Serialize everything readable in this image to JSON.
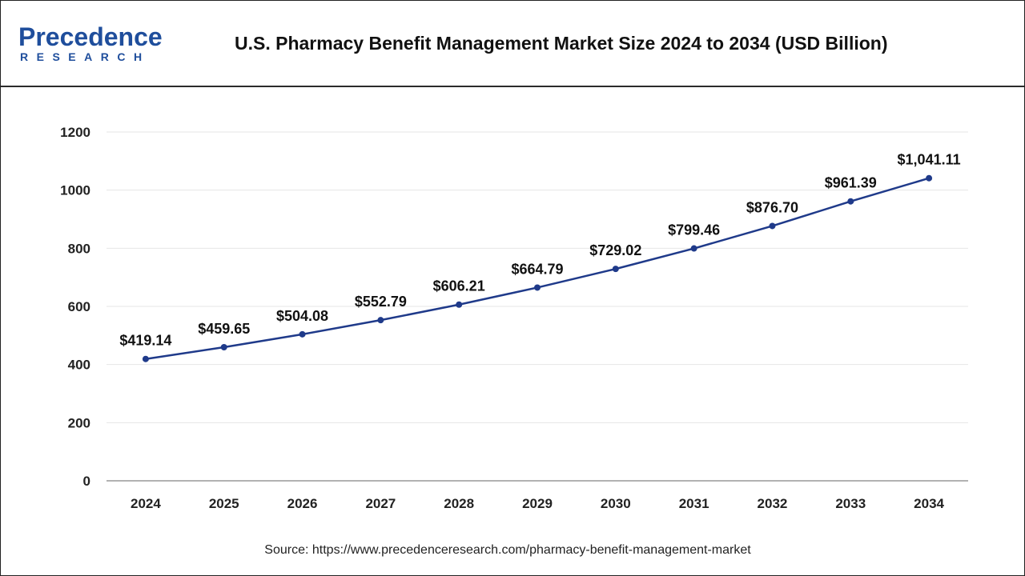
{
  "header": {
    "logo_main": "Precedence",
    "logo_sub": "RESEARCH",
    "title": "U.S. Pharmacy Benefit Management Market Size 2024 to 2034 (USD Billion)"
  },
  "footer": {
    "source": "Source: https://www.precedenceresearch.com/pharmacy-benefit-management-market"
  },
  "colors": {
    "line": "#1f3a8a",
    "brand": "#1f4e9c",
    "grid": "#e6e6e6"
  },
  "chart_data": {
    "type": "line",
    "title": "U.S. Pharmacy Benefit Management Market Size 2024 to 2034 (USD Billion)",
    "xlabel": "",
    "ylabel": "",
    "categories": [
      "2024",
      "2025",
      "2026",
      "2027",
      "2028",
      "2029",
      "2030",
      "2031",
      "2032",
      "2033",
      "2034"
    ],
    "series": [
      {
        "values": [
          419.14,
          459.65,
          504.08,
          552.79,
          606.21,
          664.79,
          729.02,
          799.46,
          876.7,
          961.39,
          1041.11
        ],
        "labels": [
          "$419.14",
          "$459.65",
          "$504.08",
          "$552.79",
          "$606.21",
          "$664.79",
          "$729.02",
          "$799.46",
          "$876.70",
          "$961.39",
          "$1,041.11"
        ]
      }
    ],
    "ylim": [
      0,
      1200
    ],
    "yticks": [
      "0",
      "200",
      "400",
      "600",
      "800",
      "1000",
      "1200"
    ],
    "grid": true,
    "legend": "none"
  }
}
